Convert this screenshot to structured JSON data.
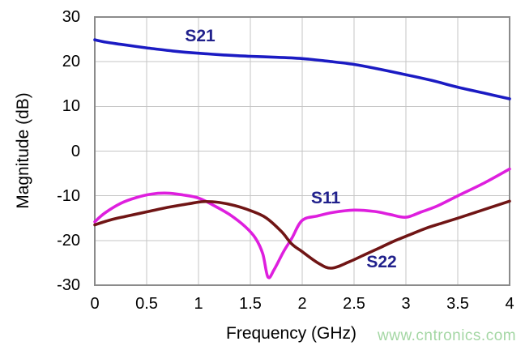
{
  "chart_data": {
    "type": "line",
    "title": "",
    "xlabel": "Frequency (GHz)",
    "ylabel": "Magnitude (dB)",
    "xlim": [
      0,
      4
    ],
    "ylim": [
      -30,
      30
    ],
    "grid": true,
    "legend_position": "inline-annotations",
    "xticks": [
      0,
      0.5,
      1,
      1.5,
      2,
      2.5,
      3,
      3.5,
      4
    ],
    "xtick_labels": [
      "0",
      "0.5",
      "1",
      "1.5",
      "2",
      "2.5",
      "3",
      "3.5",
      "4"
    ],
    "yticks": [
      30,
      20,
      10,
      0,
      -10,
      -20,
      -30
    ],
    "ytick_labels": [
      "30",
      "20",
      "10",
      "0",
      "-10",
      "-20",
      "-30"
    ],
    "colors": {
      "s21_curve": "#1b1bc3",
      "s11_curve": "#de1fde",
      "s22_curve": "#701515",
      "curve_label_text": "#21218c",
      "grid_line": "#c5c5c5",
      "plot_border": "#8b8b8b",
      "axis_text": "#000000",
      "watermark_text": "#a4d7a4"
    },
    "series": [
      {
        "name": "S21",
        "color": "#1b1bc3",
        "points": [
          [
            0,
            24.9
          ],
          [
            0.1,
            24.4
          ],
          [
            0.25,
            23.9
          ],
          [
            0.5,
            23.1
          ],
          [
            0.75,
            22.4
          ],
          [
            1,
            21.9
          ],
          [
            1.25,
            21.5
          ],
          [
            1.5,
            21.2
          ],
          [
            1.75,
            21.0
          ],
          [
            2,
            20.7
          ],
          [
            2.25,
            20.1
          ],
          [
            2.5,
            19.4
          ],
          [
            2.75,
            18.3
          ],
          [
            3,
            17.1
          ],
          [
            3.25,
            15.8
          ],
          [
            3.5,
            14.3
          ],
          [
            3.75,
            13.0
          ],
          [
            4,
            11.7
          ]
        ]
      },
      {
        "name": "S11",
        "color": "#de1fde",
        "points": [
          [
            0,
            -15.8
          ],
          [
            0.1,
            -13.8
          ],
          [
            0.25,
            -11.7
          ],
          [
            0.4,
            -10.4
          ],
          [
            0.55,
            -9.6
          ],
          [
            0.7,
            -9.4
          ],
          [
            0.85,
            -9.8
          ],
          [
            1.0,
            -10.5
          ],
          [
            1.15,
            -12.2
          ],
          [
            1.3,
            -14.2
          ],
          [
            1.45,
            -16.9
          ],
          [
            1.55,
            -19.5
          ],
          [
            1.62,
            -23.0
          ],
          [
            1.67,
            -28.2
          ],
          [
            1.73,
            -26.5
          ],
          [
            1.82,
            -22.5
          ],
          [
            1.9,
            -19.5
          ],
          [
            2.0,
            -15.5
          ],
          [
            2.15,
            -14.5
          ],
          [
            2.3,
            -13.7
          ],
          [
            2.5,
            -13.2
          ],
          [
            2.7,
            -13.5
          ],
          [
            2.85,
            -14.2
          ],
          [
            3.0,
            -14.8
          ],
          [
            3.15,
            -13.6
          ],
          [
            3.3,
            -12.3
          ],
          [
            3.5,
            -10.0
          ],
          [
            3.75,
            -7.2
          ],
          [
            4,
            -4.0
          ]
        ]
      },
      {
        "name": "S22",
        "color": "#701515",
        "points": [
          [
            0,
            -16.5
          ],
          [
            0.15,
            -15.4
          ],
          [
            0.3,
            -14.6
          ],
          [
            0.5,
            -13.6
          ],
          [
            0.7,
            -12.6
          ],
          [
            0.9,
            -11.8
          ],
          [
            1.05,
            -11.3
          ],
          [
            1.2,
            -11.5
          ],
          [
            1.35,
            -12.2
          ],
          [
            1.5,
            -13.3
          ],
          [
            1.65,
            -14.9
          ],
          [
            1.8,
            -18.0
          ],
          [
            1.9,
            -20.8
          ],
          [
            2.0,
            -22.5
          ],
          [
            2.15,
            -25.0
          ],
          [
            2.28,
            -26.2
          ],
          [
            2.45,
            -24.8
          ],
          [
            2.6,
            -23.2
          ],
          [
            2.75,
            -21.6
          ],
          [
            2.9,
            -20.0
          ],
          [
            3.05,
            -18.6
          ],
          [
            3.2,
            -17.2
          ],
          [
            3.35,
            -16.1
          ],
          [
            3.5,
            -15.0
          ],
          [
            3.75,
            -13.1
          ],
          [
            4,
            -11.2
          ]
        ]
      }
    ],
    "annotations": [
      {
        "label": "S21",
        "x": 1.016,
        "y": 25.65
      },
      {
        "label": "S11",
        "x": 2.227,
        "y": -10.6
      },
      {
        "label": "S22",
        "x": 2.766,
        "y": -24.9
      }
    ],
    "watermark": "www.cntronics.com"
  }
}
